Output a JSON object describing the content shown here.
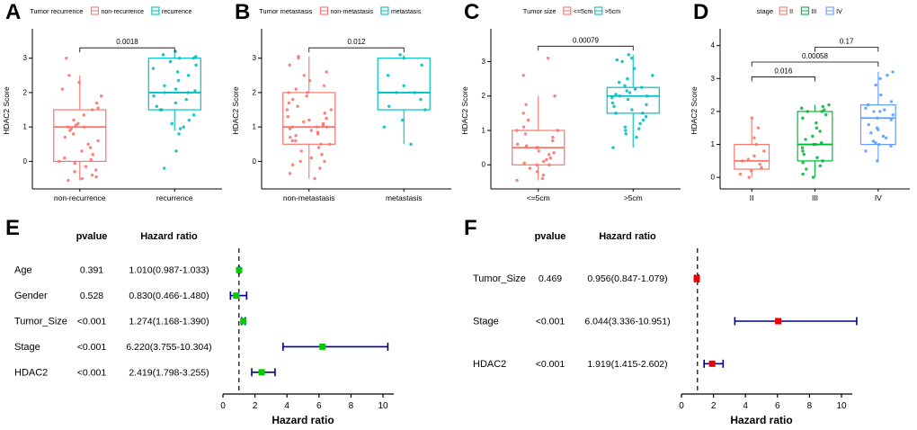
{
  "panels": {
    "letters": [
      "A",
      "B",
      "C",
      "D",
      "E",
      "F"
    ]
  },
  "chart_data": [
    {
      "type": "boxplot",
      "legend_title": "Tumor recurrence",
      "ylabel": "HDAC2 Score",
      "ylim": [
        -0.8,
        3.75
      ],
      "yticks": [
        0,
        1,
        2,
        3
      ],
      "groups": [
        {
          "label": "non-recurrence",
          "color": "#F8766D",
          "box": {
            "low": -0.55,
            "q1": 0,
            "median": 1,
            "q3": 1.5,
            "high": 2.5
          },
          "points": [
            -0.55,
            -0.5,
            -0.45,
            -0.4,
            -0.3,
            -0.25,
            -0.15,
            -0.05,
            0,
            0.05,
            0.1,
            0.2,
            0.3,
            0.4,
            0.5,
            0.6,
            0.7,
            0.8,
            0.9,
            0.95,
            1,
            1,
            1.05,
            1.1,
            1.2,
            1.35,
            1.5,
            1.55,
            1.7,
            1.9,
            2.1,
            2.3,
            2.5,
            3
          ]
        },
        {
          "label": "recurrence",
          "color": "#00BFC4",
          "box": {
            "low": 0.9,
            "q1": 1.5,
            "median": 2,
            "q3": 3,
            "high": 3.2
          },
          "points": [
            -0.2,
            0.3,
            0.8,
            0.95,
            1,
            1.1,
            1.2,
            1.35,
            1.5,
            1.5,
            1.6,
            1.7,
            1.8,
            1.9,
            2,
            2,
            2.05,
            2.1,
            2.2,
            2.35,
            2.5,
            2.6,
            2.7,
            2.8,
            2.9,
            3,
            3,
            3.05,
            3.1,
            3.2
          ]
        }
      ],
      "comparisons": [
        {
          "g1": 0,
          "g2": 1,
          "y": 3.3,
          "label": "0.0018"
        }
      ]
    },
    {
      "type": "boxplot",
      "legend_title": "Tumor metastasis",
      "ylabel": "HDAC2 Score",
      "ylim": [
        -0.8,
        3.75
      ],
      "yticks": [
        0,
        1,
        2,
        3
      ],
      "groups": [
        {
          "label": "non-metastasis",
          "color": "#F8766D",
          "box": {
            "low": -0.5,
            "q1": 0.5,
            "median": 1,
            "q3": 2,
            "high": 3.05
          },
          "points": [
            -0.5,
            -0.35,
            -0.2,
            -0.1,
            0,
            0,
            0.1,
            0.2,
            0.3,
            0.4,
            0.5,
            0.5,
            0.6,
            0.6,
            0.7,
            0.75,
            0.8,
            0.85,
            0.9,
            0.95,
            1,
            1,
            1,
            1.05,
            1.1,
            1.15,
            1.2,
            1.25,
            1.3,
            1.4,
            1.5,
            1.5,
            1.6,
            1.7,
            1.8,
            1.9,
            2,
            2,
            2.1,
            2.2,
            2.35,
            2.5,
            2.6,
            2.8,
            3,
            3.05
          ]
        },
        {
          "label": "metastasis",
          "color": "#00BFC4",
          "box": {
            "low": 0.5,
            "q1": 1.5,
            "median": 2,
            "q3": 3,
            "high": 3.1
          },
          "points": [
            0.5,
            1,
            1.2,
            1.5,
            1.6,
            1.8,
            2,
            2,
            2.2,
            2.5,
            2.8,
            3,
            3.1
          ]
        }
      ],
      "comparisons": [
        {
          "g1": 0,
          "g2": 1,
          "y": 3.3,
          "label": "0.012"
        }
      ]
    },
    {
      "type": "boxplot",
      "legend_title": "Tumor size",
      "ylabel": "HDAC2 Score",
      "ylim": [
        -0.7,
        3.85
      ],
      "yticks": [
        0,
        1,
        2,
        3
      ],
      "groups": [
        {
          "label": "<=5cm",
          "color": "#F8766D",
          "box": {
            "low": -0.45,
            "q1": 0,
            "median": 0.5,
            "q3": 1,
            "high": 2
          },
          "points": [
            -0.45,
            -0.4,
            -0.3,
            -0.2,
            -0.1,
            0,
            0,
            0.05,
            0.1,
            0.15,
            0.2,
            0.3,
            0.35,
            0.4,
            0.5,
            0.5,
            0.55,
            0.6,
            0.7,
            0.8,
            0.9,
            1,
            1,
            1.1,
            1.3,
            1.5,
            1.75,
            2,
            2.6,
            3.1
          ]
        },
        {
          "label": ">5cm",
          "color": "#00BFC4",
          "box": {
            "low": 0.5,
            "q1": 1.5,
            "median": 2,
            "q3": 2.25,
            "high": 3.2
          },
          "points": [
            0.5,
            0.8,
            0.9,
            1,
            1.05,
            1.1,
            1.2,
            1.3,
            1.4,
            1.5,
            1.5,
            1.6,
            1.7,
            1.75,
            1.8,
            1.9,
            1.95,
            2,
            2,
            2.05,
            2.1,
            2.15,
            2.2,
            2.25,
            2.3,
            2.4,
            2.5,
            2.6,
            2.8,
            3,
            3.05,
            3.1,
            3.2
          ]
        }
      ],
      "comparisons": [
        {
          "g1": 0,
          "g2": 1,
          "y": 3.45,
          "label": "0.00079"
        }
      ]
    },
    {
      "type": "boxplot",
      "legend_title": "stage",
      "ylabel": "HDAC2 Score",
      "ylim": [
        -0.35,
        4.4
      ],
      "yticks": [
        0,
        1,
        2,
        3,
        4
      ],
      "groups": [
        {
          "label": "II",
          "color": "#F8766D",
          "box": {
            "low": 0,
            "q1": 0.25,
            "median": 0.5,
            "q3": 1,
            "high": 1.8
          },
          "points": [
            0,
            0.1,
            0.2,
            0.3,
            0.4,
            0.5,
            0.55,
            0.65,
            0.8,
            1,
            1.2,
            1.5,
            1.8
          ]
        },
        {
          "label": "III",
          "color": "#00BA38",
          "box": {
            "low": 0,
            "q1": 0.5,
            "median": 1,
            "q3": 2,
            "high": 2.2
          },
          "points": [
            0,
            0.1,
            0.25,
            0.35,
            0.45,
            0.5,
            0.6,
            0.7,
            0.8,
            0.9,
            1,
            1,
            1.05,
            1.15,
            1.25,
            1.4,
            1.5,
            1.65,
            1.8,
            1.9,
            2,
            2,
            2.05,
            2.1,
            2.15,
            2.2
          ]
        },
        {
          "label": "IV",
          "color": "#619CFF",
          "box": {
            "low": 0.5,
            "q1": 1,
            "median": 1.8,
            "q3": 2.2,
            "high": 3.2
          },
          "points": [
            0.5,
            0.8,
            0.95,
            1,
            1.05,
            1.1,
            1.2,
            1.25,
            1.35,
            1.45,
            1.5,
            1.6,
            1.75,
            1.8,
            1.9,
            2,
            2,
            2.05,
            2.1,
            2.2,
            2.3,
            2.5,
            2.8,
            3,
            3.1,
            3.2
          ]
        }
      ],
      "comparisons": [
        {
          "g1": 0,
          "g2": 1,
          "y": 3.05,
          "label": "0.016"
        },
        {
          "g1": 0,
          "g2": 2,
          "y": 3.5,
          "label": "0.00058"
        },
        {
          "g1": 1,
          "g2": 2,
          "y": 3.95,
          "label": "0.17"
        }
      ]
    },
    {
      "type": "forest",
      "col_headers": [
        "pvalue",
        "Hazard ratio"
      ],
      "xlabel": "Hazard ratio",
      "ref_line": 1,
      "xlim": [
        0,
        11
      ],
      "xticks": [
        0,
        2,
        4,
        6,
        8,
        10
      ],
      "marker_color": "#00CC00",
      "bar_color": "#00008B",
      "rows": [
        {
          "label": "Age",
          "pvalue": "0.391",
          "hr_text": "1.010(0.987-1.033)",
          "hr": 1.01,
          "low": 0.987,
          "high": 1.033
        },
        {
          "label": "Gender",
          "pvalue": "0.528",
          "hr_text": "0.830(0.466-1.480)",
          "hr": 0.83,
          "low": 0.466,
          "high": 1.48
        },
        {
          "label": "Tumor_Size",
          "pvalue": "<0.001",
          "hr_text": "1.274(1.168-1.390)",
          "hr": 1.274,
          "low": 1.168,
          "high": 1.39
        },
        {
          "label": "Stage",
          "pvalue": "<0.001",
          "hr_text": "6.220(3.755-10.304)",
          "hr": 6.22,
          "low": 3.755,
          "high": 10.304
        },
        {
          "label": "HDAC2",
          "pvalue": "<0.001",
          "hr_text": "2.419(1.798-3.255)",
          "hr": 2.419,
          "low": 1.798,
          "high": 3.255
        }
      ]
    },
    {
      "type": "forest",
      "col_headers": [
        "pvalue",
        "Hazard ratio"
      ],
      "xlabel": "Hazard ratio",
      "ref_line": 1,
      "xlim": [
        0,
        11
      ],
      "xticks": [
        0,
        2,
        4,
        6,
        8,
        10
      ],
      "marker_color": "#EE0000",
      "bar_color": "#00008B",
      "rows": [
        {
          "label": "Tumor_Size",
          "pvalue": "0.469",
          "hr_text": "0.956(0.847-1.079)",
          "hr": 0.956,
          "low": 0.847,
          "high": 1.079
        },
        {
          "label": "Stage",
          "pvalue": "<0.001",
          "hr_text": "6.044(3.336-10.951)",
          "hr": 6.044,
          "low": 3.336,
          "high": 10.951
        },
        {
          "label": "HDAC2",
          "pvalue": "<0.001",
          "hr_text": "1.919(1.415-2.602)",
          "hr": 1.919,
          "low": 1.415,
          "high": 2.602
        }
      ]
    }
  ]
}
